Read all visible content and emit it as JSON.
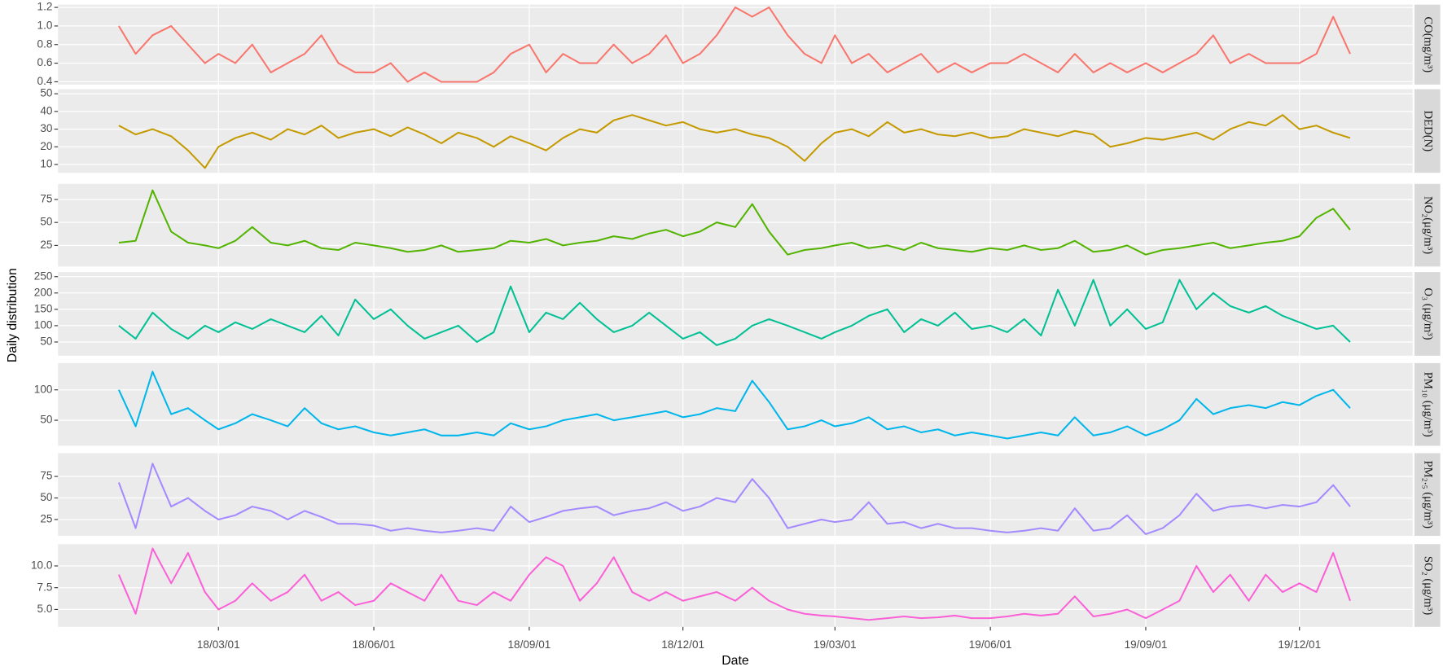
{
  "chart_data": {
    "type": "line",
    "xlabel": "Date",
    "ylabel": "Daily distribution",
    "grid": true,
    "x": [
      "2018-01-01",
      "2018-01-11",
      "2018-01-21",
      "2018-02-01",
      "2018-02-11",
      "2018-02-21",
      "2018-03-01",
      "2018-03-11",
      "2018-03-21",
      "2018-04-01",
      "2018-04-11",
      "2018-04-21",
      "2018-05-01",
      "2018-05-11",
      "2018-05-21",
      "2018-06-01",
      "2018-06-11",
      "2018-06-21",
      "2018-07-01",
      "2018-07-11",
      "2018-07-21",
      "2018-08-01",
      "2018-08-11",
      "2018-08-21",
      "2018-09-01",
      "2018-09-11",
      "2018-09-21",
      "2018-10-01",
      "2018-10-11",
      "2018-10-21",
      "2018-11-01",
      "2018-11-11",
      "2018-11-21",
      "2018-12-01",
      "2018-12-11",
      "2018-12-21",
      "2019-01-01",
      "2019-01-11",
      "2019-01-21",
      "2019-02-01",
      "2019-02-11",
      "2019-02-21",
      "2019-03-01",
      "2019-03-11",
      "2019-03-21",
      "2019-04-01",
      "2019-04-11",
      "2019-04-21",
      "2019-05-01",
      "2019-05-11",
      "2019-05-21",
      "2019-06-01",
      "2019-06-11",
      "2019-06-21",
      "2019-07-01",
      "2019-07-11",
      "2019-07-21",
      "2019-08-01",
      "2019-08-11",
      "2019-08-21",
      "2019-09-01",
      "2019-09-11",
      "2019-09-21",
      "2019-10-01",
      "2019-10-11",
      "2019-10-21",
      "2019-11-01",
      "2019-11-11",
      "2019-11-21",
      "2019-12-01",
      "2019-12-11",
      "2019-12-21",
      "2019-12-31"
    ],
    "xlim": [
      "2017-11-26",
      "2020-02-06"
    ],
    "xticks": [
      {
        "value": "2018-03-01",
        "label": "18/03/01"
      },
      {
        "value": "2018-06-01",
        "label": "18/06/01"
      },
      {
        "value": "2018-09-01",
        "label": "18/09/01"
      },
      {
        "value": "2018-12-01",
        "label": "18/12/01"
      },
      {
        "value": "2019-03-01",
        "label": "19/03/01"
      },
      {
        "value": "2019-06-01",
        "label": "19/06/01"
      },
      {
        "value": "2019-09-01",
        "label": "19/09/01"
      },
      {
        "value": "2019-12-01",
        "label": "19/12/01"
      }
    ],
    "panels": [
      {
        "label": "CO(mg/m³)",
        "color": "#F8766D",
        "ylim": [
          0.37,
          1.23
        ],
        "yticks": [
          0.4,
          0.6,
          0.8,
          {
            "value": 1,
            "label": "1.0"
          },
          1.2
        ],
        "values": [
          1.0,
          0.7,
          0.9,
          1.0,
          0.8,
          0.6,
          0.7,
          0.6,
          0.8,
          0.5,
          0.6,
          0.7,
          0.9,
          0.6,
          0.5,
          0.5,
          0.6,
          0.4,
          0.5,
          0.4,
          0.4,
          0.4,
          0.5,
          0.7,
          0.8,
          0.5,
          0.7,
          0.6,
          0.6,
          0.8,
          0.6,
          0.7,
          0.9,
          0.6,
          0.7,
          0.9,
          1.2,
          1.1,
          1.2,
          0.9,
          0.7,
          0.6,
          0.9,
          0.6,
          0.7,
          0.5,
          0.6,
          0.7,
          0.5,
          0.6,
          0.5,
          0.6,
          0.6,
          0.7,
          0.6,
          0.5,
          0.7,
          0.5,
          0.6,
          0.5,
          0.6,
          0.5,
          0.6,
          0.7,
          0.9,
          0.6,
          0.7,
          0.6,
          0.6,
          0.6,
          0.7,
          1.1,
          0.7
        ]
      },
      {
        "label": "DED(N)",
        "color": "#C49A00",
        "ylim": [
          5.3,
          52.6
        ],
        "yticks": [
          10,
          20,
          30,
          40,
          50
        ],
        "values": [
          32,
          27,
          30,
          26,
          18,
          8,
          20,
          25,
          28,
          24,
          30,
          27,
          32,
          25,
          28,
          30,
          26,
          31,
          27,
          22,
          28,
          25,
          20,
          26,
          22,
          18,
          25,
          30,
          28,
          35,
          38,
          35,
          32,
          34,
          30,
          28,
          30,
          27,
          25,
          20,
          12,
          22,
          28,
          30,
          26,
          34,
          28,
          30,
          27,
          26,
          28,
          25,
          26,
          30,
          28,
          26,
          29,
          27,
          20,
          22,
          25,
          24,
          26,
          28,
          24,
          30,
          34,
          32,
          38,
          30,
          32,
          28,
          25
        ]
      },
      {
        "label": "NO₂(μg/m³)",
        "color": "#53B400",
        "ylim": [
          2,
          92
        ],
        "yticks": [
          25,
          50,
          75
        ],
        "values": [
          28,
          30,
          85,
          40,
          28,
          25,
          22,
          30,
          45,
          28,
          25,
          30,
          22,
          20,
          28,
          25,
          22,
          18,
          20,
          25,
          18,
          20,
          22,
          30,
          28,
          32,
          25,
          28,
          30,
          35,
          32,
          38,
          42,
          35,
          40,
          50,
          45,
          70,
          40,
          15,
          20,
          22,
          25,
          28,
          22,
          25,
          20,
          28,
          22,
          20,
          18,
          22,
          20,
          25,
          20,
          22,
          30,
          18,
          20,
          25,
          15,
          20,
          22,
          25,
          28,
          22,
          25,
          28,
          30,
          35,
          55,
          65,
          42
        ]
      },
      {
        "label": "O₃ (μg/m³)",
        "color": "#00C094",
        "ylim": [
          8,
          264
        ],
        "yticks": [
          50,
          100,
          150,
          200,
          250
        ],
        "values": [
          100,
          60,
          140,
          90,
          60,
          100,
          80,
          110,
          90,
          120,
          100,
          80,
          130,
          70,
          180,
          120,
          150,
          100,
          60,
          80,
          100,
          50,
          80,
          220,
          80,
          140,
          120,
          170,
          120,
          80,
          100,
          140,
          100,
          60,
          80,
          40,
          60,
          100,
          120,
          100,
          80,
          60,
          80,
          100,
          130,
          150,
          80,
          120,
          100,
          140,
          90,
          100,
          80,
          120,
          70,
          210,
          100,
          240,
          100,
          150,
          90,
          110,
          240,
          150,
          200,
          160,
          140,
          160,
          130,
          110,
          90,
          100,
          50
        ]
      },
      {
        "label": "PM₁₀ (μg/m³)",
        "color": "#00B6EB",
        "ylim": [
          8,
          144
        ],
        "yticks": [
          50,
          100
        ],
        "values": [
          100,
          40,
          130,
          60,
          70,
          50,
          35,
          45,
          60,
          50,
          40,
          70,
          45,
          35,
          40,
          30,
          25,
          30,
          35,
          25,
          25,
          30,
          25,
          45,
          35,
          40,
          50,
          55,
          60,
          50,
          55,
          60,
          65,
          55,
          60,
          70,
          65,
          115,
          80,
          35,
          40,
          50,
          40,
          45,
          55,
          35,
          40,
          30,
          35,
          25,
          30,
          25,
          20,
          25,
          30,
          25,
          55,
          25,
          30,
          40,
          25,
          35,
          50,
          85,
          60,
          70,
          75,
          70,
          80,
          75,
          90,
          100,
          70
        ]
      },
      {
        "label": "PM₂.₅ (μg/m³)",
        "color": "#A58AFF",
        "ylim": [
          6,
          102
        ],
        "yticks": [
          25,
          50,
          75
        ],
        "values": [
          68,
          15,
          90,
          40,
          50,
          35,
          25,
          30,
          40,
          35,
          25,
          35,
          28,
          20,
          20,
          18,
          12,
          15,
          12,
          10,
          12,
          15,
          12,
          40,
          22,
          28,
          35,
          38,
          40,
          30,
          35,
          38,
          45,
          35,
          40,
          50,
          45,
          72,
          50,
          15,
          20,
          25,
          22,
          25,
          45,
          20,
          22,
          15,
          20,
          15,
          15,
          12,
          10,
          12,
          15,
          12,
          38,
          12,
          15,
          30,
          8,
          15,
          30,
          55,
          35,
          40,
          42,
          38,
          42,
          40,
          45,
          65,
          40
        ]
      },
      {
        "label": "SO₂ (μg/m³)",
        "color": "#FB61D7",
        "ylim": [
          3,
          12.5
        ],
        "yticks": [
          {
            "value": 5,
            "label": "5.0"
          },
          7.5,
          {
            "value": 10,
            "label": "10.0"
          }
        ],
        "values": [
          9,
          4.5,
          12,
          8,
          11.5,
          7,
          5,
          6,
          8,
          6,
          7,
          9,
          6,
          7,
          5.5,
          6,
          8,
          7,
          6,
          9,
          6,
          5.5,
          7,
          6,
          9,
          11,
          10,
          6,
          8,
          11,
          7,
          6,
          7,
          6,
          6.5,
          7,
          6,
          7.5,
          6,
          5,
          4.5,
          4.3,
          4.2,
          4,
          3.8,
          4,
          4.2,
          4,
          4.1,
          4.3,
          4,
          4,
          4.2,
          4.5,
          4.3,
          4.5,
          6.5,
          4.2,
          4.5,
          5,
          4,
          5,
          6,
          10,
          7,
          9,
          6,
          9,
          7,
          8,
          7,
          11.5,
          6
        ]
      }
    ]
  }
}
